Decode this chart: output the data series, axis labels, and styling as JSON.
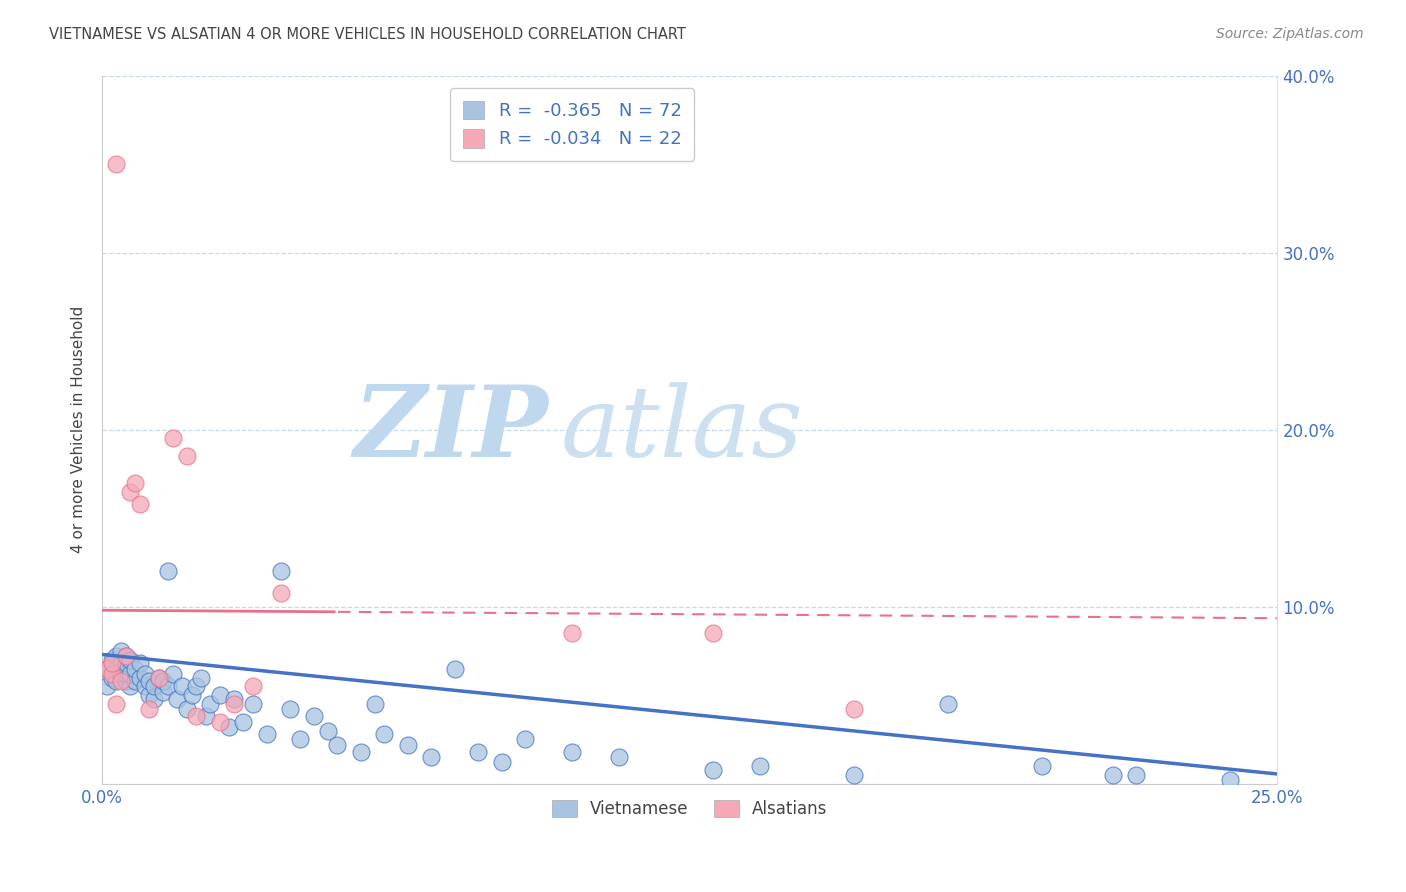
{
  "title": "VIETNAMESE VS ALSATIAN 4 OR MORE VEHICLES IN HOUSEHOLD CORRELATION CHART",
  "source": "Source: ZipAtlas.com",
  "ylabel": "4 or more Vehicles in Household",
  "xlim": [
    0.0,
    0.25
  ],
  "ylim": [
    0.0,
    0.4
  ],
  "xticks": [
    0.0,
    0.05,
    0.1,
    0.15,
    0.2,
    0.25
  ],
  "yticks": [
    0.0,
    0.1,
    0.2,
    0.3,
    0.4
  ],
  "ytick_labels": [
    "",
    "10.0%",
    "20.0%",
    "30.0%",
    "40.0%"
  ],
  "vietnamese_color": "#a8c4e0",
  "alsatian_color": "#f4a8b8",
  "line_color_viet": "#4472c4",
  "line_color_als": "#e8708a",
  "legend_text_color": "#4472c4",
  "title_color": "#444444",
  "source_color": "#888888",
  "watermark_zip_color": "#c8ddf0",
  "watermark_atlas_color": "#d8e8f4",
  "R_viet": -0.365,
  "N_viet": 72,
  "R_als": -0.034,
  "N_als": 22,
  "viet_x": [
    0.001,
    0.001,
    0.002,
    0.002,
    0.003,
    0.003,
    0.003,
    0.004,
    0.004,
    0.004,
    0.005,
    0.005,
    0.005,
    0.005,
    0.006,
    0.006,
    0.006,
    0.007,
    0.007,
    0.008,
    0.008,
    0.009,
    0.009,
    0.01,
    0.01,
    0.011,
    0.011,
    0.012,
    0.013,
    0.013,
    0.014,
    0.014,
    0.015,
    0.016,
    0.017,
    0.018,
    0.019,
    0.02,
    0.021,
    0.022,
    0.023,
    0.025,
    0.027,
    0.028,
    0.03,
    0.032,
    0.035,
    0.038,
    0.04,
    0.042,
    0.045,
    0.048,
    0.05,
    0.055,
    0.058,
    0.06,
    0.065,
    0.07,
    0.075,
    0.08,
    0.085,
    0.09,
    0.1,
    0.11,
    0.13,
    0.14,
    0.16,
    0.18,
    0.2,
    0.215,
    0.22,
    0.24
  ],
  "viet_y": [
    0.055,
    0.065,
    0.06,
    0.07,
    0.058,
    0.065,
    0.072,
    0.062,
    0.068,
    0.075,
    0.058,
    0.062,
    0.068,
    0.072,
    0.055,
    0.062,
    0.07,
    0.058,
    0.065,
    0.06,
    0.068,
    0.055,
    0.062,
    0.05,
    0.058,
    0.048,
    0.055,
    0.06,
    0.052,
    0.058,
    0.12,
    0.055,
    0.062,
    0.048,
    0.055,
    0.042,
    0.05,
    0.055,
    0.06,
    0.038,
    0.045,
    0.05,
    0.032,
    0.048,
    0.035,
    0.045,
    0.028,
    0.12,
    0.042,
    0.025,
    0.038,
    0.03,
    0.022,
    0.018,
    0.045,
    0.028,
    0.022,
    0.015,
    0.065,
    0.018,
    0.012,
    0.025,
    0.018,
    0.015,
    0.008,
    0.01,
    0.005,
    0.045,
    0.01,
    0.005,
    0.005,
    0.002
  ],
  "als_x": [
    0.001,
    0.002,
    0.002,
    0.003,
    0.003,
    0.004,
    0.005,
    0.006,
    0.007,
    0.008,
    0.01,
    0.012,
    0.015,
    0.018,
    0.02,
    0.025,
    0.028,
    0.032,
    0.038,
    0.1,
    0.13,
    0.16
  ],
  "als_y": [
    0.065,
    0.062,
    0.068,
    0.35,
    0.045,
    0.058,
    0.072,
    0.165,
    0.17,
    0.158,
    0.042,
    0.06,
    0.195,
    0.185,
    0.038,
    0.035,
    0.045,
    0.055,
    0.108,
    0.085,
    0.085,
    0.042
  ]
}
